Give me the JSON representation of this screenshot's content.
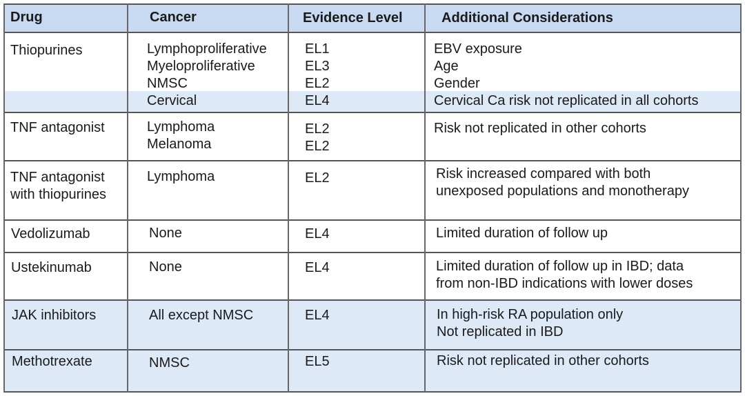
{
  "table": {
    "headers": {
      "drug": "Drug",
      "cancer": "Cancer",
      "evidence": "Evidence Level",
      "considerations": "Additional Considerations"
    },
    "rows": [
      {
        "drug": "Thiopurines",
        "entries": [
          {
            "cancer": "Lymphoproliferative",
            "evidence": "EL1",
            "considerations": "EBV exposure"
          },
          {
            "cancer": "Myeloproliferative",
            "evidence": "EL3",
            "considerations": "Age"
          },
          {
            "cancer": "NMSC",
            "evidence": "EL2",
            "considerations": "Gender"
          },
          {
            "cancer": "Cervical",
            "evidence": "EL4",
            "considerations": "Cervical Ca risk not replicated in all cohorts"
          }
        ]
      },
      {
        "drug": "TNF antagonist",
        "cancer": [
          "Lymphoma",
          "Melanoma"
        ],
        "evidence": [
          "EL2",
          "EL2"
        ],
        "considerations": [
          "Risk not replicated in other cohorts"
        ]
      },
      {
        "drug": [
          "TNF antagonist",
          "with thiopurines"
        ],
        "cancer": [
          "Lymphoma"
        ],
        "evidence": [
          "EL2"
        ],
        "considerations": [
          "Risk increased compared with both",
          "unexposed populations and monotherapy"
        ]
      },
      {
        "drug": "Vedolizumab",
        "cancer": [
          "None"
        ],
        "evidence": [
          "EL4"
        ],
        "considerations": [
          "Limited duration of follow up"
        ]
      },
      {
        "drug": "Ustekinumab",
        "cancer": [
          "None"
        ],
        "evidence": [
          "EL4"
        ],
        "considerations": [
          "Limited duration of follow up in IBD; data",
          "from non-IBD indications with lower doses"
        ]
      },
      {
        "drug": "JAK inhibitors",
        "cancer": [
          "All except NMSC"
        ],
        "evidence": [
          "EL4"
        ],
        "considerations": [
          "In high-risk RA population only",
          "Not replicated in IBD"
        ]
      },
      {
        "drug": "Methotrexate",
        "cancer": [
          "NMSC"
        ],
        "evidence": [
          "EL5"
        ],
        "considerations": [
          "Risk not replicated in other cohorts"
        ]
      }
    ]
  }
}
